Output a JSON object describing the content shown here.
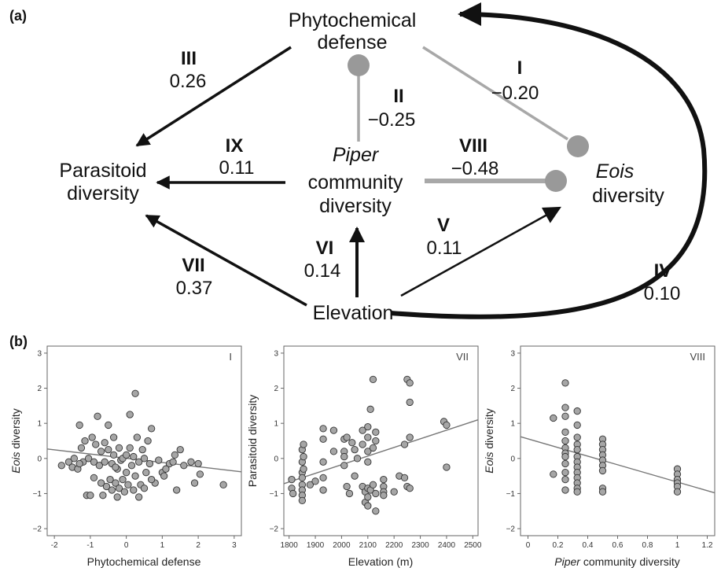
{
  "panel_a": {
    "label": "(a)",
    "nodes": {
      "phyto_line1": "Phytochemical",
      "phyto_line2": "defense",
      "parasitoid_line1": "Parasitoid",
      "parasitoid_line2": "diversity",
      "piper_line1": "Piper",
      "piper_line2": "community",
      "piper_line3": "diversity",
      "eois_line1": "Eois",
      "eois_line2": "diversity",
      "elevation": "Elevation"
    },
    "paths": [
      {
        "id": "I",
        "roman": "I",
        "coef": "−0.20"
      },
      {
        "id": "II",
        "roman": "II",
        "coef": "−0.25"
      },
      {
        "id": "III",
        "roman": "III",
        "coef": "0.26"
      },
      {
        "id": "IV",
        "roman": "IV",
        "coef": "0.10"
      },
      {
        "id": "V",
        "roman": "V",
        "coef": "0.11"
      },
      {
        "id": "VI",
        "roman": "VI",
        "coef": "0.14"
      },
      {
        "id": "VII",
        "roman": "VII",
        "coef": "0.37"
      },
      {
        "id": "VIII",
        "roman": "VIII",
        "coef": "−0.48"
      },
      {
        "id": "IX",
        "roman": "IX",
        "coef": "0.11"
      }
    ],
    "colors": {
      "positive": "#111111",
      "negative": "#a0a0a0"
    }
  },
  "panel_b": {
    "label": "(b)"
  },
  "chart_data": [
    {
      "type": "scatter",
      "panel": "I",
      "title": "",
      "xlabel_italic": "",
      "xlabel": "Phytochemical defense",
      "ylabel_italic": "Eois",
      "ylabel": " diversity",
      "xlim": [
        -2.2,
        3.2
      ],
      "ylim": [
        -2.2,
        3.2
      ],
      "xticks": [
        -2,
        -1,
        0,
        1,
        2,
        3
      ],
      "yticks": [
        -2,
        -1,
        0,
        1,
        2,
        3
      ],
      "trend": {
        "x": [
          -2.2,
          3.2
        ],
        "y": [
          0.27,
          -0.38
        ]
      },
      "points": [
        [
          -1.8,
          -0.2
        ],
        [
          -1.6,
          -0.1
        ],
        [
          -1.5,
          -0.25
        ],
        [
          -1.45,
          0.0
        ],
        [
          -1.35,
          -0.3
        ],
        [
          -1.3,
          0.95
        ],
        [
          -1.25,
          0.3
        ],
        [
          -1.2,
          -0.1
        ],
        [
          -1.15,
          0.5
        ],
        [
          -1.1,
          -1.05
        ],
        [
          -1.05,
          0.0
        ],
        [
          -1.0,
          -1.05
        ],
        [
          -0.95,
          0.6
        ],
        [
          -0.9,
          -0.1
        ],
        [
          -0.85,
          0.4
        ],
        [
          -0.8,
          1.2
        ],
        [
          -0.75,
          -0.2
        ],
        [
          -0.7,
          0.2
        ],
        [
          -0.7,
          -0.7
        ],
        [
          -0.65,
          -1.05
        ],
        [
          -0.6,
          0.45
        ],
        [
          -0.6,
          -0.1
        ],
        [
          -0.55,
          -0.8
        ],
        [
          -0.5,
          0.95
        ],
        [
          -0.5,
          0.25
        ],
        [
          -0.45,
          -0.6
        ],
        [
          -0.4,
          -0.15
        ],
        [
          -0.4,
          -0.9
        ],
        [
          -0.35,
          0.6
        ],
        [
          -0.35,
          0.1
        ],
        [
          -0.3,
          -0.7
        ],
        [
          -0.25,
          -1.1
        ],
        [
          -0.25,
          -0.3
        ],
        [
          -0.2,
          0.3
        ],
        [
          -0.2,
          -0.85
        ],
        [
          -0.15,
          -0.05
        ],
        [
          -0.1,
          -0.6
        ],
        [
          -0.1,
          0.0
        ],
        [
          -0.05,
          -0.95
        ],
        [
          0.0,
          0.1
        ],
        [
          0.0,
          -0.4
        ],
        [
          0.05,
          -0.75
        ],
        [
          0.1,
          1.25
        ],
        [
          0.1,
          0.3
        ],
        [
          0.15,
          -0.2
        ],
        [
          0.2,
          -0.9
        ],
        [
          0.2,
          0.05
        ],
        [
          0.25,
          1.85
        ],
        [
          0.25,
          -0.5
        ],
        [
          0.3,
          0.6
        ],
        [
          0.35,
          -1.1
        ],
        [
          0.35,
          -0.1
        ],
        [
          0.4,
          -0.75
        ],
        [
          0.45,
          0.25
        ],
        [
          0.5,
          -0.85
        ],
        [
          0.5,
          0.0
        ],
        [
          0.55,
          -0.4
        ],
        [
          0.6,
          0.5
        ],
        [
          0.65,
          -0.15
        ],
        [
          0.7,
          0.85
        ],
        [
          0.8,
          -0.7
        ],
        [
          0.9,
          -0.05
        ],
        [
          1.0,
          -0.4
        ],
        [
          1.05,
          -0.5
        ],
        [
          1.2,
          -0.15
        ],
        [
          1.3,
          -0.1
        ],
        [
          1.35,
          0.1
        ],
        [
          1.4,
          -0.9
        ],
        [
          1.5,
          0.25
        ],
        [
          1.6,
          -0.2
        ],
        [
          1.8,
          -0.1
        ],
        [
          1.9,
          -0.7
        ],
        [
          2.0,
          -0.15
        ],
        [
          2.05,
          -0.45
        ],
        [
          2.7,
          -0.75
        ],
        [
          -0.9,
          -0.55
        ],
        [
          -0.3,
          -0.25
        ],
        [
          0.7,
          -0.6
        ],
        [
          1.1,
          -0.3
        ],
        [
          -1.3,
          -0.15
        ]
      ]
    },
    {
      "type": "scatter",
      "panel": "VII",
      "title": "",
      "xlabel_italic": "",
      "xlabel": "Elevation (m)",
      "ylabel_italic": "",
      "ylabel": "Parasitoid diversity",
      "xlim": [
        1780,
        2520
      ],
      "ylim": [
        -2.2,
        3.2
      ],
      "xticks": [
        1800,
        1900,
        2000,
        2100,
        2200,
        2300,
        2400,
        2500
      ],
      "yticks": [
        -2,
        -1,
        0,
        1,
        2,
        3
      ],
      "trend": {
        "x": [
          1780,
          2520
        ],
        "y": [
          -0.72,
          1.1
        ]
      },
      "points": [
        [
          1810,
          -0.6
        ],
        [
          1810,
          -0.85
        ],
        [
          1815,
          -1.0
        ],
        [
          1850,
          0.25
        ],
        [
          1850,
          -0.1
        ],
        [
          1850,
          -0.4
        ],
        [
          1850,
          -0.55
        ],
        [
          1850,
          -0.75
        ],
        [
          1850,
          -0.9
        ],
        [
          1850,
          -1.05
        ],
        [
          1850,
          -1.2
        ],
        [
          1855,
          0.4
        ],
        [
          1855,
          0.05
        ],
        [
          1855,
          -0.3
        ],
        [
          1880,
          -0.75
        ],
        [
          1900,
          -0.65
        ],
        [
          1930,
          0.85
        ],
        [
          1930,
          0.55
        ],
        [
          1930,
          -0.1
        ],
        [
          1930,
          -0.55
        ],
        [
          1930,
          -0.9
        ],
        [
          1970,
          0.8
        ],
        [
          1970,
          0.2
        ],
        [
          2010,
          0.55
        ],
        [
          2010,
          0.2
        ],
        [
          2010,
          0.05
        ],
        [
          2010,
          -0.2
        ],
        [
          2020,
          -0.8
        ],
        [
          2030,
          -1.0
        ],
        [
          2040,
          0.45
        ],
        [
          2050,
          0.25
        ],
        [
          2050,
          -0.5
        ],
        [
          2060,
          0.0
        ],
        [
          2080,
          0.8
        ],
        [
          2080,
          0.4
        ],
        [
          2080,
          -0.8
        ],
        [
          2090,
          -0.95
        ],
        [
          2090,
          -1.25
        ],
        [
          2100,
          0.9
        ],
        [
          2100,
          0.6
        ],
        [
          2100,
          0.2
        ],
        [
          2100,
          -0.1
        ],
        [
          2100,
          -0.85
        ],
        [
          2100,
          -1.1
        ],
        [
          2100,
          -1.35
        ],
        [
          2110,
          -0.9
        ],
        [
          2110,
          1.4
        ],
        [
          2120,
          2.25
        ],
        [
          2120,
          -0.75
        ],
        [
          2120,
          0.3
        ],
        [
          2130,
          -1.5
        ],
        [
          2130,
          -1.0
        ],
        [
          2130,
          0.5
        ],
        [
          2130,
          0.75
        ],
        [
          2160,
          -0.6
        ],
        [
          2160,
          -0.8
        ],
        [
          2160,
          -0.95
        ],
        [
          2160,
          -1.05
        ],
        [
          2200,
          -0.95
        ],
        [
          2220,
          -0.5
        ],
        [
          2240,
          -0.55
        ],
        [
          2240,
          0.4
        ],
        [
          2250,
          2.25
        ],
        [
          2250,
          -0.8
        ],
        [
          2260,
          2.15
        ],
        [
          2260,
          1.6
        ],
        [
          2260,
          0.6
        ],
        [
          2260,
          -0.85
        ],
        [
          2390,
          1.05
        ],
        [
          2400,
          0.95
        ],
        [
          2400,
          -0.25
        ],
        [
          2020,
          0.6
        ]
      ]
    },
    {
      "type": "scatter",
      "panel": "VIII",
      "title": "",
      "xlabel_italic": "Piper",
      "xlabel": " community diversity",
      "ylabel_italic": "Eois",
      "ylabel": " diversity",
      "xlim": [
        -0.05,
        1.25
      ],
      "ylim": [
        -2.2,
        3.2
      ],
      "xticks": [
        0.0,
        0.2,
        0.4,
        0.6,
        0.8,
        1.0,
        1.2
      ],
      "yticks": [
        -2,
        -1,
        0,
        1,
        2,
        3
      ],
      "trend": {
        "x": [
          -0.05,
          1.25
        ],
        "y": [
          0.62,
          -0.98
        ]
      },
      "points": [
        [
          0.17,
          1.15
        ],
        [
          0.17,
          -0.45
        ],
        [
          0.25,
          2.15
        ],
        [
          0.25,
          1.45
        ],
        [
          0.25,
          1.2
        ],
        [
          0.25,
          0.75
        ],
        [
          0.25,
          0.5
        ],
        [
          0.25,
          0.3
        ],
        [
          0.25,
          0.15
        ],
        [
          0.25,
          0.05
        ],
        [
          0.25,
          -0.15
        ],
        [
          0.25,
          -0.4
        ],
        [
          0.25,
          -0.6
        ],
        [
          0.25,
          -0.9
        ],
        [
          0.33,
          1.35
        ],
        [
          0.33,
          0.95
        ],
        [
          0.33,
          0.6
        ],
        [
          0.33,
          0.4
        ],
        [
          0.33,
          0.25
        ],
        [
          0.33,
          0.05
        ],
        [
          0.33,
          -0.1
        ],
        [
          0.33,
          -0.25
        ],
        [
          0.33,
          -0.4
        ],
        [
          0.33,
          -0.55
        ],
        [
          0.33,
          -0.7
        ],
        [
          0.33,
          -0.85
        ],
        [
          0.33,
          -0.95
        ],
        [
          0.5,
          0.55
        ],
        [
          0.5,
          0.4
        ],
        [
          0.5,
          0.25
        ],
        [
          0.5,
          0.1
        ],
        [
          0.5,
          -0.05
        ],
        [
          0.5,
          -0.2
        ],
        [
          0.5,
          -0.35
        ],
        [
          0.5,
          -0.85
        ],
        [
          0.5,
          -0.95
        ],
        [
          1.0,
          -0.3
        ],
        [
          1.0,
          -0.45
        ],
        [
          1.0,
          -0.6
        ],
        [
          1.0,
          -0.7
        ],
        [
          1.0,
          -0.8
        ],
        [
          1.0,
          -0.95
        ]
      ]
    }
  ]
}
